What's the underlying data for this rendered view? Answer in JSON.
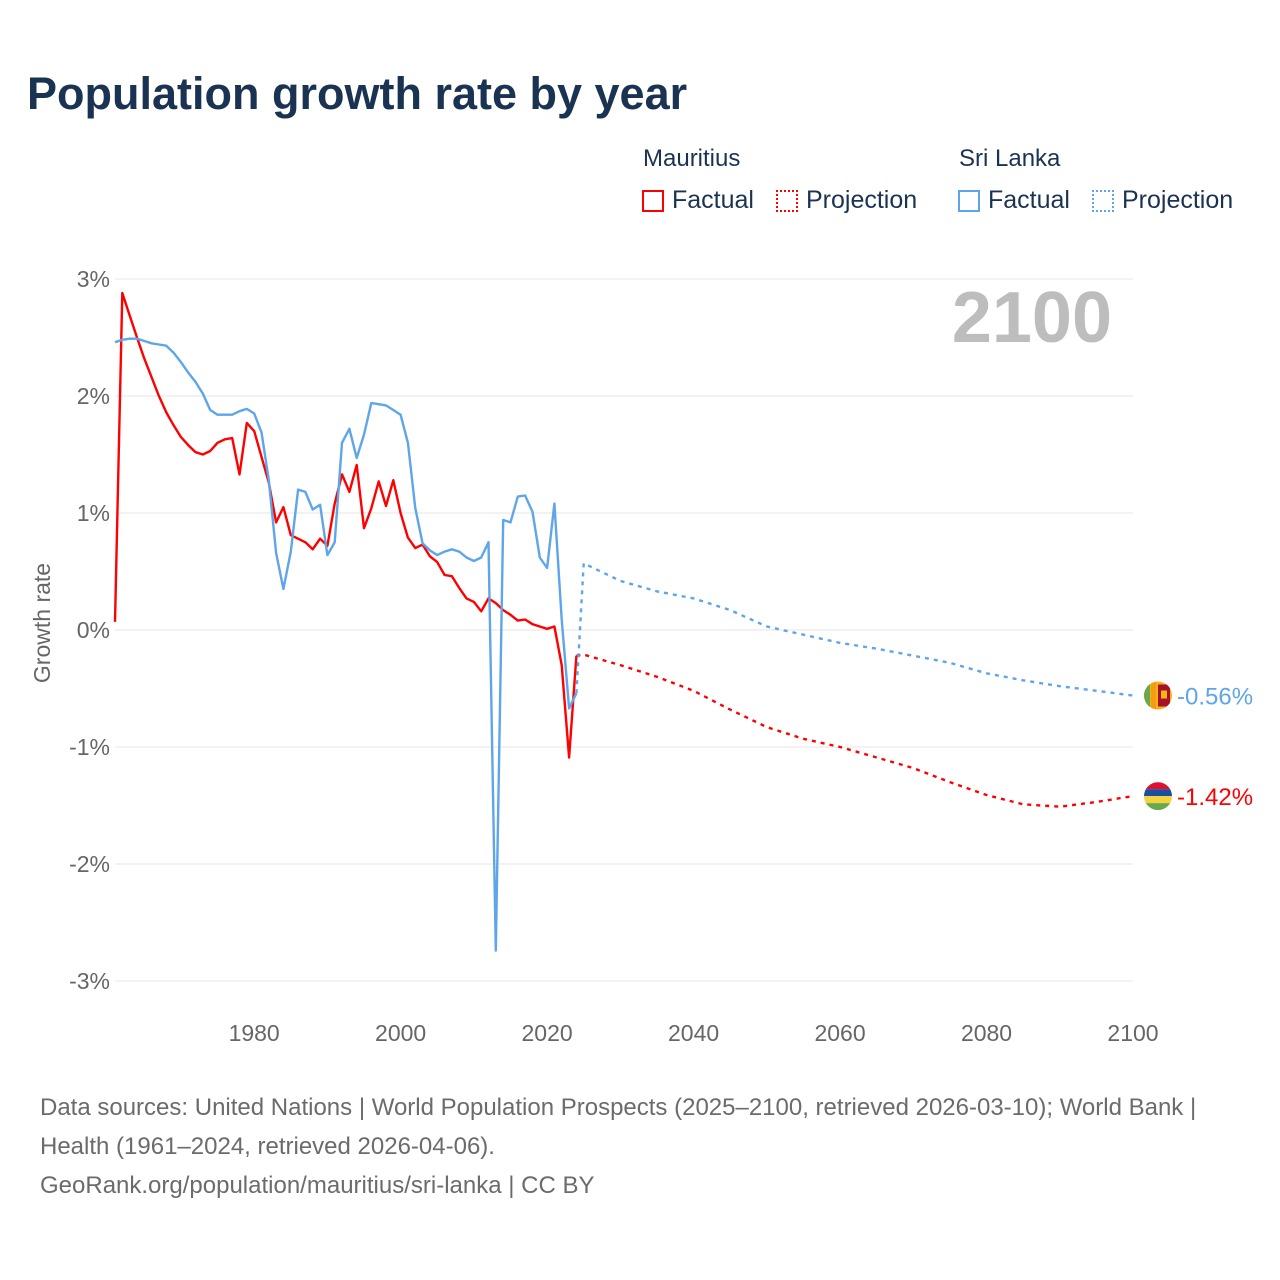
{
  "title": "Population growth rate by year",
  "legend": {
    "groups": [
      {
        "name": "Mauritius",
        "color": "#ff0000",
        "items": [
          {
            "label": "Factual",
            "style": "solid"
          },
          {
            "label": "Projection",
            "style": "dotted"
          }
        ]
      },
      {
        "name": "Sri Lanka",
        "color": "#5ea5ea",
        "items": [
          {
            "label": "Factual",
            "style": "solid"
          },
          {
            "label": "Projection",
            "style": "dotted"
          }
        ]
      }
    ]
  },
  "chart_data": {
    "type": "line",
    "title": "Population growth rate by year",
    "xlabel": "",
    "ylabel": "Growth rate",
    "xlim": [
      1961,
      2100
    ],
    "ylim": [
      -3,
      3
    ],
    "x_ticks": [
      1980,
      2000,
      2020,
      2040,
      2060,
      2080,
      2100
    ],
    "y_ticks": [
      3,
      2,
      1,
      0,
      -1,
      -2,
      -3
    ],
    "y_tick_labels": [
      "3%",
      "2%",
      "1%",
      "0%",
      "-1%",
      "-2%",
      "-3%"
    ],
    "grid": true,
    "year_watermark": "2100",
    "series": [
      {
        "name": "Mauritius",
        "kind": "Factual",
        "color": "#ff0000",
        "x": [
          1961,
          1962,
          1963,
          1964,
          1965,
          1966,
          1967,
          1968,
          1969,
          1970,
          1971,
          1972,
          1973,
          1974,
          1975,
          1976,
          1977,
          1978,
          1979,
          1980,
          1981,
          1982,
          1983,
          1984,
          1985,
          1986,
          1987,
          1988,
          1989,
          1990,
          1991,
          1992,
          1993,
          1994,
          1995,
          1996,
          1997,
          1998,
          1999,
          2000,
          2001,
          2002,
          2003,
          2004,
          2005,
          2006,
          2007,
          2008,
          2009,
          2010,
          2011,
          2012,
          2013,
          2014,
          2015,
          2016,
          2017,
          2018,
          2019,
          2020,
          2021,
          2022,
          2023,
          2024
        ],
        "y": [
          0.07,
          2.88,
          2.69,
          2.5,
          2.32,
          2.16,
          2.0,
          1.86,
          1.75,
          1.65,
          1.58,
          1.52,
          1.5,
          1.53,
          1.6,
          1.63,
          1.64,
          1.33,
          1.77,
          1.7,
          1.48,
          1.26,
          0.92,
          1.05,
          0.81,
          0.78,
          0.75,
          0.69,
          0.78,
          0.72,
          1.08,
          1.33,
          1.18,
          1.41,
          0.87,
          1.04,
          1.27,
          1.06,
          1.28,
          1.0,
          0.79,
          0.7,
          0.73,
          0.63,
          0.58,
          0.47,
          0.46,
          0.36,
          0.27,
          0.24,
          0.16,
          0.27,
          0.23,
          0.17,
          0.13,
          0.08,
          0.09,
          0.05,
          0.03,
          0.01,
          0.03,
          -0.3,
          -1.09,
          -0.22
        ]
      },
      {
        "name": "Mauritius",
        "kind": "Projection",
        "color": "#ff0000",
        "x": [
          2024,
          2025,
          2030,
          2035,
          2040,
          2045,
          2050,
          2055,
          2060,
          2065,
          2070,
          2075,
          2080,
          2085,
          2090,
          2095,
          2100
        ],
        "y": [
          -0.22,
          -0.21,
          -0.3,
          -0.4,
          -0.52,
          -0.68,
          -0.83,
          -0.93,
          -1.0,
          -1.09,
          -1.18,
          -1.3,
          -1.41,
          -1.49,
          -1.51,
          -1.47,
          -1.42
        ]
      },
      {
        "name": "Sri Lanka",
        "kind": "Factual",
        "color": "#5ea5ea",
        "x": [
          1961,
          1962,
          1963,
          1964,
          1965,
          1966,
          1967,
          1968,
          1969,
          1970,
          1971,
          1972,
          1973,
          1974,
          1975,
          1976,
          1977,
          1978,
          1979,
          1980,
          1981,
          1982,
          1983,
          1984,
          1985,
          1986,
          1987,
          1988,
          1989,
          1990,
          1991,
          1992,
          1993,
          1994,
          1995,
          1996,
          1997,
          1998,
          1999,
          2000,
          2001,
          2002,
          2003,
          2004,
          2005,
          2006,
          2007,
          2008,
          2009,
          2010,
          2011,
          2012,
          2013,
          2014,
          2015,
          2016,
          2017,
          2018,
          2019,
          2020,
          2021,
          2022,
          2023,
          2024
        ],
        "y": [
          2.46,
          2.48,
          2.49,
          2.49,
          2.47,
          2.45,
          2.44,
          2.43,
          2.37,
          2.29,
          2.2,
          2.12,
          2.02,
          1.88,
          1.84,
          1.84,
          1.84,
          1.87,
          1.89,
          1.85,
          1.69,
          1.28,
          0.66,
          0.35,
          0.67,
          1.2,
          1.18,
          1.03,
          1.07,
          0.64,
          0.75,
          1.6,
          1.72,
          1.47,
          1.67,
          1.94,
          1.93,
          1.92,
          1.88,
          1.84,
          1.6,
          1.04,
          0.74,
          0.68,
          0.64,
          0.67,
          0.69,
          0.67,
          0.62,
          0.59,
          0.62,
          0.75,
          -2.74,
          0.94,
          0.92,
          1.14,
          1.15,
          1.01,
          0.62,
          0.53,
          1.08,
          0.09,
          -0.67,
          -0.54
        ]
      },
      {
        "name": "Sri Lanka",
        "kind": "Projection",
        "color": "#5ea5ea",
        "x": [
          2024,
          2025,
          2030,
          2035,
          2040,
          2045,
          2050,
          2055,
          2060,
          2065,
          2070,
          2075,
          2080,
          2085,
          2090,
          2095,
          2100
        ],
        "y": [
          -0.54,
          0.57,
          0.42,
          0.33,
          0.27,
          0.17,
          0.03,
          -0.04,
          -0.11,
          -0.16,
          -0.22,
          -0.28,
          -0.37,
          -0.43,
          -0.48,
          -0.52,
          -0.56
        ]
      }
    ],
    "end_labels": [
      {
        "series": "Sri Lanka",
        "text": "-0.56%",
        "value": -0.56,
        "color": "#5ea5ea",
        "flag": "sri-lanka-flag"
      },
      {
        "series": "Mauritius",
        "text": "-1.42%",
        "value": -1.42,
        "color": "#ff0000",
        "flag": "mauritius-flag"
      }
    ]
  },
  "footer": {
    "sources": "Data sources: United Nations | World Population Prospects (2025–2100, retrieved 2026-03-10); World Bank | Health (1961–2024, retrieved 2026-04-06).",
    "link": "GeoRank.org/population/mauritius/sri-lanka | CC BY"
  }
}
